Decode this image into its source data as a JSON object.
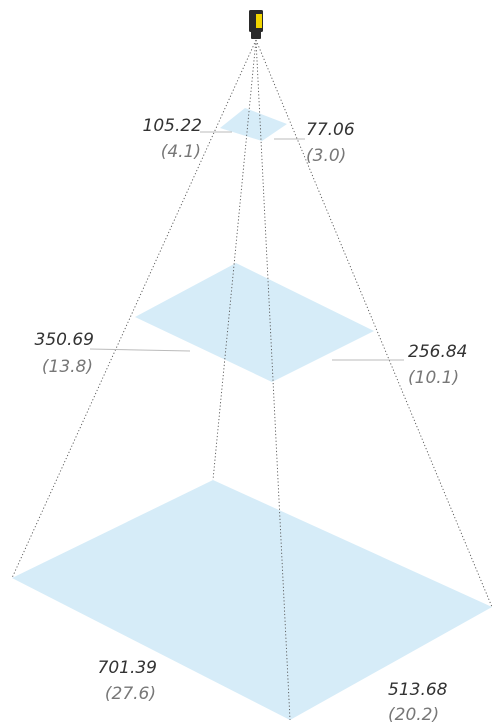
{
  "colors": {
    "plane_fill": "#d6ecf8",
    "camera_body": "#2a2a2a",
    "camera_accent": "#f2d600"
  },
  "icons": {
    "camera": "camera-icon"
  },
  "planes": [
    {
      "width_mm": "105.22",
      "width_in": "(4.1)",
      "height_mm": "77.06",
      "height_in": "(3.0)"
    },
    {
      "width_mm": "350.69",
      "width_in": "(13.8)",
      "height_mm": "256.84",
      "height_in": "(10.1)"
    },
    {
      "width_mm": "701.39",
      "width_in": "(27.6)",
      "height_mm": "513.68",
      "height_in": "(20.2)"
    }
  ]
}
